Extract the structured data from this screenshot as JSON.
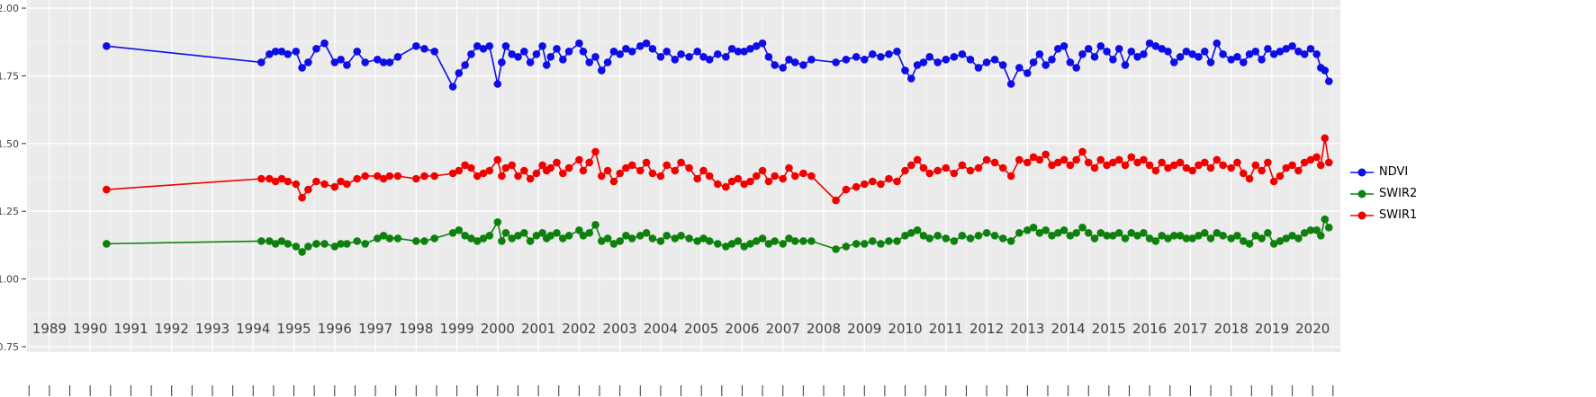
{
  "chart_data": {
    "type": "line",
    "title": "",
    "xlabel": "",
    "ylabel": "",
    "grid": true,
    "legend_position": "right",
    "panel_bg": "#EBEBEB",
    "grid_major_color": "#FFFFFF",
    "grid_minor_color": "#FFFFFF",
    "axis_text_color": "#404040",
    "tick_color": "#333333",
    "xlim": [
      1988.45,
      2020.68
    ],
    "ylim": [
      0.73,
      2.03
    ],
    "x_ticks": [
      1989,
      1990,
      1991,
      1992,
      1993,
      1994,
      1995,
      1996,
      1997,
      1998,
      1999,
      2000,
      2001,
      2002,
      2003,
      2004,
      2005,
      2006,
      2007,
      2008,
      2009,
      2010,
      2011,
      2012,
      2013,
      2014,
      2015,
      2016,
      2017,
      2018,
      2019,
      2020
    ],
    "y_ticks": [
      0.75,
      1.0,
      1.25,
      1.5,
      1.75,
      2.0
    ],
    "y_tick_labels": [
      "0.75",
      "1.00",
      "1.25",
      "1.50",
      "1.75",
      "2.00"
    ],
    "x": [
      1990.4,
      1994.2,
      1994.4,
      1994.55,
      1994.7,
      1994.85,
      1995.05,
      1995.2,
      1995.35,
      1995.55,
      1995.75,
      1996.0,
      1996.15,
      1996.3,
      1996.55,
      1996.75,
      1997.05,
      1997.2,
      1997.35,
      1997.55,
      1998.0,
      1998.2,
      1998.45,
      1998.9,
      1999.05,
      1999.2,
      1999.35,
      1999.5,
      1999.65,
      1999.8,
      2000.0,
      2000.1,
      2000.2,
      2000.35,
      2000.5,
      2000.65,
      2000.8,
      2000.95,
      2001.1,
      2001.2,
      2001.3,
      2001.45,
      2001.6,
      2001.75,
      2002.0,
      2002.1,
      2002.25,
      2002.4,
      2002.55,
      2002.7,
      2002.85,
      2003.0,
      2003.15,
      2003.3,
      2003.5,
      2003.65,
      2003.8,
      2004.0,
      2004.15,
      2004.35,
      2004.5,
      2004.7,
      2004.9,
      2005.05,
      2005.2,
      2005.4,
      2005.6,
      2005.75,
      2005.9,
      2006.05,
      2006.2,
      2006.35,
      2006.5,
      2006.65,
      2006.8,
      2007.0,
      2007.15,
      2007.3,
      2007.5,
      2007.7,
      2008.3,
      2008.55,
      2008.8,
      2009.0,
      2009.2,
      2009.4,
      2009.6,
      2009.8,
      2010.0,
      2010.15,
      2010.3,
      2010.45,
      2010.6,
      2010.8,
      2011.0,
      2011.2,
      2011.4,
      2011.6,
      2011.8,
      2012.0,
      2012.2,
      2012.4,
      2012.6,
      2012.8,
      2013.0,
      2013.15,
      2013.3,
      2013.45,
      2013.6,
      2013.75,
      2013.9,
      2014.05,
      2014.2,
      2014.35,
      2014.5,
      2014.65,
      2014.8,
      2014.95,
      2015.1,
      2015.25,
      2015.4,
      2015.55,
      2015.7,
      2015.85,
      2016.0,
      2016.15,
      2016.3,
      2016.45,
      2016.6,
      2016.75,
      2016.9,
      2017.05,
      2017.2,
      2017.35,
      2017.5,
      2017.65,
      2017.8,
      2018.0,
      2018.15,
      2018.3,
      2018.45,
      2018.6,
      2018.75,
      2018.9,
      2019.05,
      2019.2,
      2019.35,
      2019.5,
      2019.65,
      2019.8,
      2019.95,
      2020.1,
      2020.2,
      2020.3,
      2020.4
    ],
    "series": [
      {
        "name": "NDVI",
        "color": "#0D0DE8",
        "values": [
          1.86,
          1.8,
          1.83,
          1.84,
          1.84,
          1.83,
          1.84,
          1.78,
          1.8,
          1.85,
          1.87,
          1.8,
          1.81,
          1.79,
          1.84,
          1.8,
          1.81,
          1.8,
          1.8,
          1.82,
          1.86,
          1.85,
          1.84,
          1.71,
          1.76,
          1.79,
          1.83,
          1.86,
          1.85,
          1.86,
          1.72,
          1.8,
          1.86,
          1.83,
          1.82,
          1.84,
          1.8,
          1.83,
          1.86,
          1.79,
          1.82,
          1.85,
          1.81,
          1.84,
          1.87,
          1.84,
          1.8,
          1.82,
          1.77,
          1.8,
          1.84,
          1.83,
          1.85,
          1.84,
          1.86,
          1.87,
          1.85,
          1.82,
          1.84,
          1.81,
          1.83,
          1.82,
          1.84,
          1.82,
          1.81,
          1.83,
          1.82,
          1.85,
          1.84,
          1.84,
          1.85,
          1.86,
          1.87,
          1.82,
          1.79,
          1.78,
          1.81,
          1.8,
          1.79,
          1.81,
          1.8,
          1.81,
          1.82,
          1.81,
          1.83,
          1.82,
          1.83,
          1.84,
          1.77,
          1.74,
          1.79,
          1.8,
          1.82,
          1.8,
          1.81,
          1.82,
          1.83,
          1.81,
          1.78,
          1.8,
          1.81,
          1.79,
          1.72,
          1.78,
          1.76,
          1.8,
          1.83,
          1.79,
          1.81,
          1.85,
          1.86,
          1.8,
          1.78,
          1.83,
          1.85,
          1.82,
          1.86,
          1.84,
          1.81,
          1.85,
          1.79,
          1.84,
          1.82,
          1.83,
          1.87,
          1.86,
          1.85,
          1.84,
          1.8,
          1.82,
          1.84,
          1.83,
          1.82,
          1.84,
          1.8,
          1.87,
          1.83,
          1.81,
          1.82,
          1.8,
          1.83,
          1.84,
          1.81,
          1.85,
          1.83,
          1.84,
          1.85,
          1.86,
          1.84,
          1.83,
          1.85,
          1.83,
          1.78,
          1.77,
          1.73
        ]
      },
      {
        "name": "SWIR2",
        "color": "#0E800E",
        "values": [
          1.13,
          1.14,
          1.14,
          1.13,
          1.14,
          1.13,
          1.12,
          1.1,
          1.12,
          1.13,
          1.13,
          1.12,
          1.13,
          1.13,
          1.14,
          1.13,
          1.15,
          1.16,
          1.15,
          1.15,
          1.14,
          1.14,
          1.15,
          1.17,
          1.18,
          1.16,
          1.15,
          1.14,
          1.15,
          1.16,
          1.21,
          1.14,
          1.17,
          1.15,
          1.16,
          1.17,
          1.14,
          1.16,
          1.17,
          1.15,
          1.16,
          1.17,
          1.15,
          1.16,
          1.18,
          1.16,
          1.17,
          1.2,
          1.14,
          1.15,
          1.13,
          1.14,
          1.16,
          1.15,
          1.16,
          1.17,
          1.15,
          1.14,
          1.16,
          1.15,
          1.16,
          1.15,
          1.14,
          1.15,
          1.14,
          1.13,
          1.12,
          1.13,
          1.14,
          1.12,
          1.13,
          1.14,
          1.15,
          1.13,
          1.14,
          1.13,
          1.15,
          1.14,
          1.14,
          1.14,
          1.11,
          1.12,
          1.13,
          1.13,
          1.14,
          1.13,
          1.14,
          1.14,
          1.16,
          1.17,
          1.18,
          1.16,
          1.15,
          1.16,
          1.15,
          1.14,
          1.16,
          1.15,
          1.16,
          1.17,
          1.16,
          1.15,
          1.14,
          1.17,
          1.18,
          1.19,
          1.17,
          1.18,
          1.16,
          1.17,
          1.18,
          1.16,
          1.17,
          1.19,
          1.17,
          1.15,
          1.17,
          1.16,
          1.16,
          1.17,
          1.15,
          1.17,
          1.16,
          1.17,
          1.15,
          1.14,
          1.16,
          1.15,
          1.16,
          1.16,
          1.15,
          1.15,
          1.16,
          1.17,
          1.15,
          1.17,
          1.16,
          1.15,
          1.16,
          1.14,
          1.13,
          1.16,
          1.15,
          1.17,
          1.13,
          1.14,
          1.15,
          1.16,
          1.15,
          1.17,
          1.18,
          1.18,
          1.16,
          1.22,
          1.19
        ]
      },
      {
        "name": "SWIR1",
        "color": "#F20000",
        "values": [
          1.33,
          1.37,
          1.37,
          1.36,
          1.37,
          1.36,
          1.35,
          1.3,
          1.33,
          1.36,
          1.35,
          1.34,
          1.36,
          1.35,
          1.37,
          1.38,
          1.38,
          1.37,
          1.38,
          1.38,
          1.37,
          1.38,
          1.38,
          1.39,
          1.4,
          1.42,
          1.41,
          1.38,
          1.39,
          1.4,
          1.44,
          1.38,
          1.41,
          1.42,
          1.38,
          1.4,
          1.37,
          1.39,
          1.42,
          1.4,
          1.41,
          1.43,
          1.39,
          1.41,
          1.44,
          1.4,
          1.43,
          1.47,
          1.38,
          1.4,
          1.36,
          1.39,
          1.41,
          1.42,
          1.4,
          1.43,
          1.39,
          1.38,
          1.42,
          1.4,
          1.43,
          1.41,
          1.37,
          1.4,
          1.38,
          1.35,
          1.34,
          1.36,
          1.37,
          1.35,
          1.36,
          1.38,
          1.4,
          1.36,
          1.38,
          1.37,
          1.41,
          1.38,
          1.39,
          1.38,
          1.29,
          1.33,
          1.34,
          1.35,
          1.36,
          1.35,
          1.37,
          1.36,
          1.4,
          1.42,
          1.44,
          1.41,
          1.39,
          1.4,
          1.41,
          1.39,
          1.42,
          1.4,
          1.41,
          1.44,
          1.43,
          1.41,
          1.38,
          1.44,
          1.43,
          1.45,
          1.44,
          1.46,
          1.42,
          1.43,
          1.44,
          1.42,
          1.44,
          1.47,
          1.43,
          1.41,
          1.44,
          1.42,
          1.43,
          1.44,
          1.42,
          1.45,
          1.43,
          1.44,
          1.42,
          1.4,
          1.43,
          1.41,
          1.42,
          1.43,
          1.41,
          1.4,
          1.42,
          1.43,
          1.41,
          1.44,
          1.42,
          1.41,
          1.43,
          1.39,
          1.37,
          1.42,
          1.4,
          1.43,
          1.36,
          1.38,
          1.41,
          1.42,
          1.4,
          1.43,
          1.44,
          1.45,
          1.42,
          1.52,
          1.43
        ]
      }
    ],
    "legend": {
      "entries": [
        "NDVI",
        "SWIR2",
        "SWIR1"
      ]
    }
  }
}
